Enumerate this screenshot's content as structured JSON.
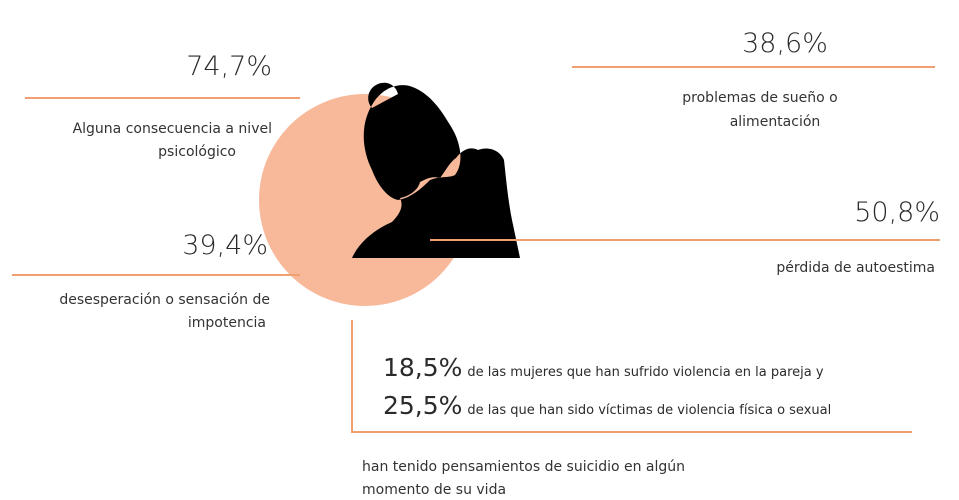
{
  "items": [
    {
      "value": "74,7%",
      "label": [
        "Alguna consecuencia a nivel",
        "psicológico"
      ]
    },
    {
      "value": "38,6%",
      "label": [
        "problemas de sueño o",
        "alimentación"
      ]
    },
    {
      "value": "50,8%",
      "label": [
        "pérdida de autoestima"
      ]
    },
    {
      "value": "39,4%",
      "label": [
        "desesperación o sensación de",
        "impotencia"
      ]
    }
  ],
  "suicide": {
    "rows": [
      {
        "value": "18,5%",
        "text": "de las mujeres que han sufrido violencia en la pareja y"
      },
      {
        "value": "25,5%",
        "text": "de las que han sido víctimas de violencia física o sexual"
      }
    ],
    "conclusion": [
      "han tenido pensamientos de suicidio en algún",
      "momento de su vida"
    ]
  }
}
